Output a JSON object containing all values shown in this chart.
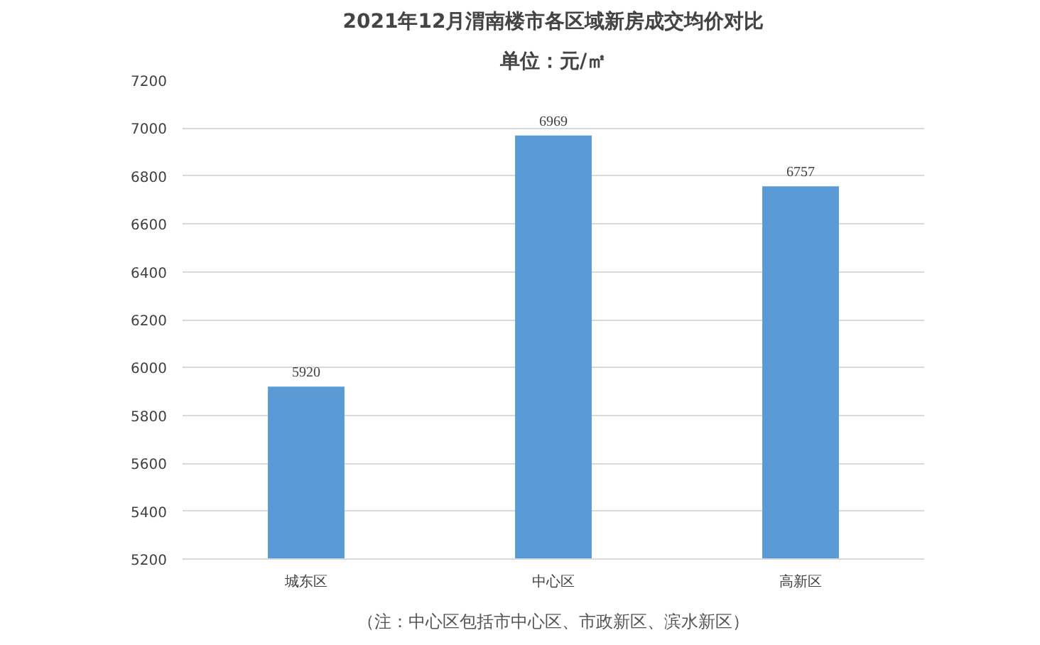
{
  "chart_data": {
    "type": "bar",
    "title": "2021年12月渭南楼市各区域新房成交均价对比",
    "subtitle": "单位：元/㎡",
    "categories": [
      "城东区",
      "中心区",
      "高新区"
    ],
    "series": [
      {
        "color": "#5b9bd5",
        "values": [
          5920,
          6969,
          6757
        ]
      }
    ],
    "ylim": [
      5200,
      7200
    ],
    "yticks": [
      5200,
      5400,
      5600,
      5800,
      6000,
      6200,
      6400,
      6600,
      6800,
      7000,
      7200
    ],
    "grid": "y",
    "data_labels": true,
    "annotations": [
      "（注：中心区包括市中心区、市政新区、滨水新区）"
    ]
  }
}
